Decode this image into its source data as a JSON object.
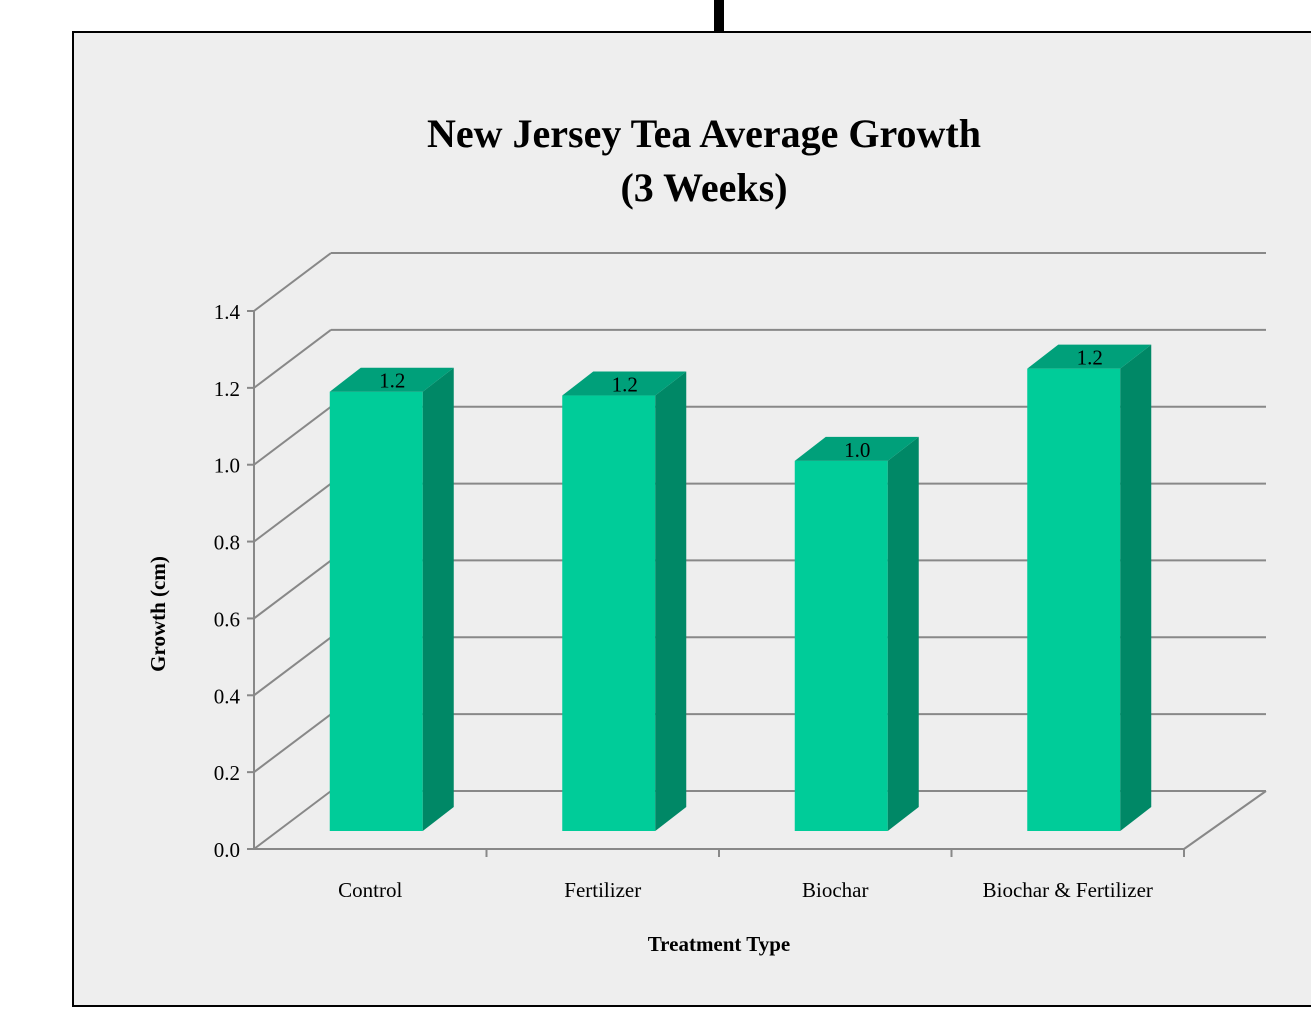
{
  "chart_data": {
    "type": "bar",
    "title_lines": [
      "New Jersey Tea Average Growth",
      "(3 Weeks)"
    ],
    "xlabel": "Treatment Type",
    "ylabel": "Growth (cm)",
    "categories": [
      "Control",
      "Fertilizer",
      "Biochar",
      "Biochar & Fertilizer"
    ],
    "values": [
      1.19,
      1.18,
      1.01,
      1.25
    ],
    "data_labels": [
      "1.2",
      "1.2",
      "1.0",
      "1.2"
    ],
    "ylim": [
      0,
      1.4
    ],
    "yticks": [
      "0.0",
      "0.2",
      "0.4",
      "0.6",
      "0.8",
      "1.0",
      "1.2",
      "1.4"
    ],
    "grid": true,
    "style": "3d-column",
    "colors": {
      "bar_front": "#00cc99",
      "bar_side": "#008866",
      "bar_top": "#00a07a",
      "grid": "#888888",
      "background": "#eeeeee"
    }
  }
}
